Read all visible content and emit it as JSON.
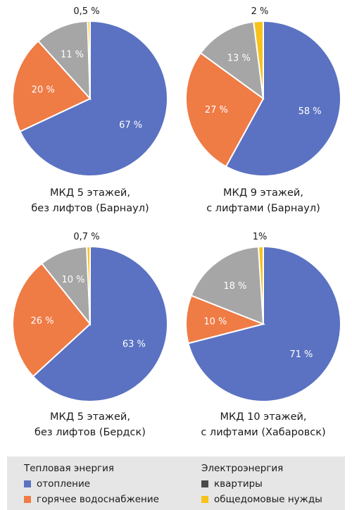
{
  "chart_data": [
    {
      "type": "pie",
      "caption": [
        "МКД 5 этажей,",
        "без лифтов (Барнаул)"
      ],
      "categories": [
        "отопление",
        "горячее водоснабжение",
        "квартиры",
        "общедомовые нужды"
      ],
      "values": [
        67,
        20,
        11,
        0.5
      ],
      "labels": [
        "67 %",
        "20 %",
        "11 %",
        "0,5 %"
      ]
    },
    {
      "type": "pie",
      "caption": [
        "МКД 9 этажей,",
        "с лифтами (Барнаул)"
      ],
      "categories": [
        "отопление",
        "горячее водоснабжение",
        "квартиры",
        "общедомовые нужды"
      ],
      "values": [
        58,
        27,
        13,
        2
      ],
      "labels": [
        "58 %",
        "27 %",
        "13 %",
        "2 %"
      ]
    },
    {
      "type": "pie",
      "caption": [
        "МКД 5 этажей,",
        "без лифтов (Бердск)"
      ],
      "categories": [
        "отопление",
        "горячее водоснабжение",
        "квартиры",
        "общедомовые нужды"
      ],
      "values": [
        63,
        26,
        10,
        0.7
      ],
      "labels": [
        "63 %",
        "26 %",
        "10 %",
        "0,7 %"
      ]
    },
    {
      "type": "pie",
      "caption": [
        "МКД 10 этажей,",
        "с лифтами (Хабаровск)"
      ],
      "categories": [
        "отопление",
        "горячее водоснабжение",
        "квартиры",
        "общедомовые нужды"
      ],
      "values": [
        71,
        10,
        18,
        1
      ],
      "labels": [
        "71 %",
        "10 %",
        "18 %",
        "1%"
      ]
    }
  ],
  "colors": {
    "heating": "#5b72c2",
    "hot_water": "#ef7b45",
    "apartments": "#a6a6a6",
    "common_needs": "#f7c21b",
    "legend_apartments_swatch": "#4a4a4a",
    "legend_background": "#e6e6e6"
  },
  "legend": {
    "group1_title": "Тепловая энергия",
    "group1_items": [
      "отопление",
      "горячее водоснабжение"
    ],
    "group2_title": "Электроэнергия",
    "group2_items": [
      "квартиры",
      "общедомовые нужды"
    ]
  }
}
